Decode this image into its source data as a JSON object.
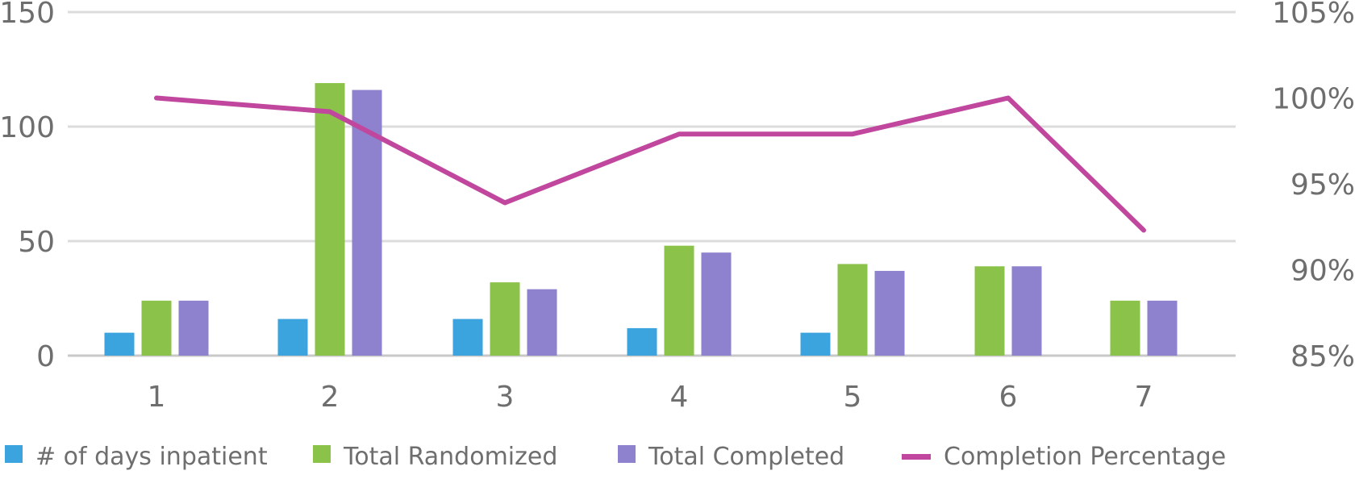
{
  "chart_data": {
    "type": "bar",
    "title": "",
    "xlabel": "",
    "ylabel": "",
    "categories": [
      "1",
      "2",
      "3",
      "4",
      "5",
      "6",
      "7"
    ],
    "ylim": [
      0,
      150
    ],
    "y_ticks": [
      "0",
      "50",
      "100",
      "150"
    ],
    "y2lim": [
      85,
      105
    ],
    "y2_ticks": [
      "85%",
      "90%",
      "95%",
      "100%",
      "105%"
    ],
    "grid": true,
    "legend_position": "bottom",
    "series": [
      {
        "name": "# of days inpatient",
        "type": "bar",
        "axis": "left",
        "color": "#3ba3dd",
        "values": [
          10,
          16,
          16,
          12,
          10,
          null,
          null
        ]
      },
      {
        "name": "Total Randomized",
        "type": "bar",
        "axis": "left",
        "color": "#8bc34a",
        "values": [
          24,
          119,
          32,
          48,
          40,
          39,
          24
        ]
      },
      {
        "name": "Total Completed",
        "type": "bar",
        "axis": "left",
        "color": "#8e82cf",
        "values": [
          24,
          116,
          29,
          45,
          37,
          39,
          24
        ]
      },
      {
        "name": "Completion Percentage",
        "type": "line",
        "axis": "right",
        "color": "#c0479d",
        "values": [
          100,
          99.2,
          93.9,
          97.9,
          97.9,
          100,
          92.3
        ]
      }
    ]
  }
}
